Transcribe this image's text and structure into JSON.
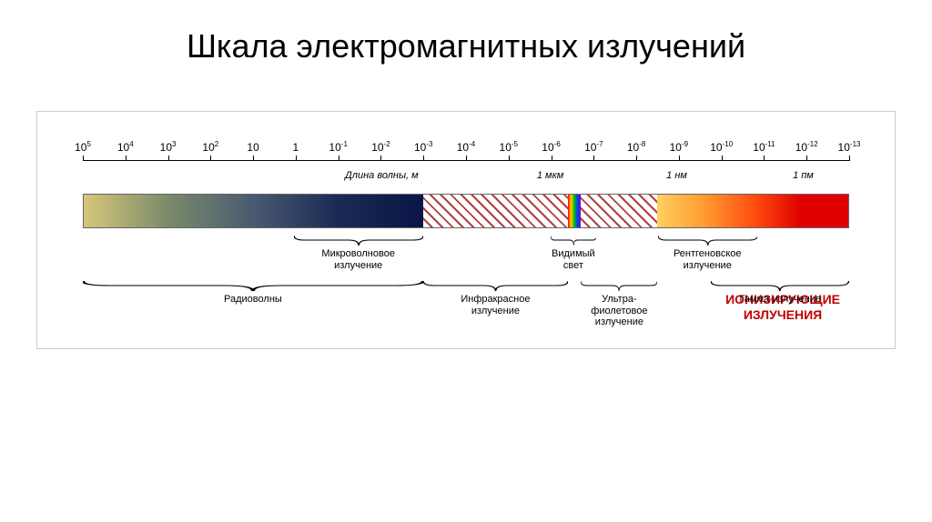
{
  "title": "Шкала электромагнитных излучений",
  "axis": {
    "exponents": [
      5,
      4,
      3,
      2,
      1,
      0,
      -1,
      -2,
      -3,
      -4,
      -5,
      -6,
      -7,
      -8,
      -9,
      -10,
      -11,
      -12,
      -13
    ],
    "start_pct": 0,
    "end_pct": 100
  },
  "mid_labels": [
    {
      "text": "Длина волны, м",
      "pos_pct": 39
    },
    {
      "text": "1 мкм",
      "pos_pct": 61
    },
    {
      "text": "1 нм",
      "pos_pct": 77.5
    },
    {
      "text": "1 пм",
      "pos_pct": 94
    }
  ],
  "segments": [
    {
      "name": "radio-microwave",
      "from_pct": 0,
      "to_pct": 44.4,
      "style": "gradient",
      "colors": [
        "#d6c77a",
        "#7a8a6a",
        "#4a5a70",
        "#1a2a55",
        "#0a1646"
      ]
    },
    {
      "name": "infrared",
      "from_pct": 44.4,
      "to_pct": 63.3,
      "style": "hatch"
    },
    {
      "name": "visible",
      "from_pct": 63.3,
      "to_pct": 65.0,
      "style": "gradient",
      "colors": [
        "#ff0000",
        "#ffd000",
        "#00c000",
        "#0040ff",
        "#8000c0"
      ]
    },
    {
      "name": "ultraviolet",
      "from_pct": 65.0,
      "to_pct": 75.0,
      "style": "hatch"
    },
    {
      "name": "xray-gamma",
      "from_pct": 75.0,
      "to_pct": 100,
      "style": "gradient",
      "colors": [
        "#ffd060",
        "#ff9a30",
        "#ff5010",
        "#e00000",
        "#e00000"
      ]
    }
  ],
  "braces_top": [
    {
      "label": "Микроволновое\nизлучение",
      "from_pct": 27.5,
      "to_pct": 44.4
    },
    {
      "label": "Видимый\nсвет",
      "from_pct": 61,
      "to_pct": 67
    },
    {
      "label": "Рентгеновское\nизлучение",
      "from_pct": 75,
      "to_pct": 88
    }
  ],
  "braces_bottom": [
    {
      "label": "Радиоволны",
      "from_pct": 0,
      "to_pct": 44.4
    },
    {
      "label": "Инфракрасное\nизлучение",
      "from_pct": 44.4,
      "to_pct": 63.3
    },
    {
      "label": "Ультра-\nфиолетовое\nизлучение",
      "from_pct": 65,
      "to_pct": 75
    },
    {
      "label": "Гамма-излучение",
      "from_pct": 82,
      "to_pct": 100
    }
  ],
  "ionizing_label": "ИОНИЗИРУЮЩИЕ\nИЗЛУЧЕНИЯ",
  "colors": {
    "ionizing": "#c00000",
    "border": "#cccccc",
    "hatch_line": "#b04040"
  }
}
